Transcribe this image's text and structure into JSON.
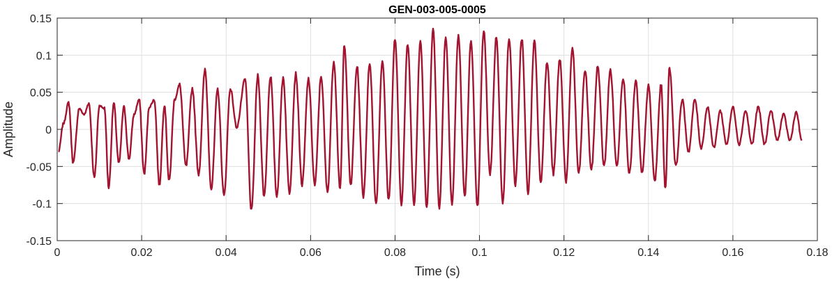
{
  "chart_data": {
    "type": "line",
    "title": "GEN-003-005-0005",
    "xlabel": "Time (s)",
    "ylabel": "Amplitude",
    "xlim": [
      0,
      0.18
    ],
    "ylim": [
      -0.15,
      0.15
    ],
    "grid": true,
    "x_ticks": [
      0,
      0.02,
      0.04,
      0.06,
      0.08,
      0.1,
      0.12,
      0.14,
      0.16,
      0.18
    ],
    "x_tick_labels": [
      "0",
      "0.02",
      "0.04",
      "0.06",
      "0.08",
      "0.1",
      "0.12",
      "0.14",
      "0.16",
      "0.18"
    ],
    "y_ticks": [
      -0.15,
      -0.1,
      -0.05,
      0,
      0.05,
      0.1,
      0.15
    ],
    "y_tick_labels": [
      "-0.15",
      "-0.1",
      "-0.05",
      "0",
      "0.05",
      "0.1",
      "0.15"
    ],
    "series": [
      {
        "color": "#A2142F",
        "peaks": [
          [
            0.0003,
            -0.03
          ],
          [
            0.0015,
            0.008
          ],
          [
            0.0027,
            0.036
          ],
          [
            0.0038,
            -0.045
          ],
          [
            0.0052,
            0.028
          ],
          [
            0.0064,
            0.02
          ],
          [
            0.0075,
            0.035
          ],
          [
            0.0088,
            -0.065
          ],
          [
            0.01,
            0.032
          ],
          [
            0.0112,
            0.028
          ],
          [
            0.0122,
            -0.078
          ],
          [
            0.0134,
            0.035
          ],
          [
            0.0146,
            -0.046
          ],
          [
            0.0158,
            0.03
          ],
          [
            0.017,
            -0.04
          ],
          [
            0.0182,
            0.02
          ],
          [
            0.0194,
            0.04
          ],
          [
            0.0206,
            -0.06
          ],
          [
            0.0218,
            0.03
          ],
          [
            0.023,
            0.04
          ],
          [
            0.0242,
            -0.075
          ],
          [
            0.0254,
            0.033
          ],
          [
            0.0265,
            -0.07
          ],
          [
            0.0278,
            0.04
          ],
          [
            0.029,
            0.06
          ],
          [
            0.0305,
            -0.05
          ],
          [
            0.032,
            0.055
          ],
          [
            0.0335,
            -0.06
          ],
          [
            0.035,
            0.08
          ],
          [
            0.0365,
            -0.08
          ],
          [
            0.038,
            0.054
          ],
          [
            0.0395,
            -0.09
          ],
          [
            0.041,
            0.055
          ],
          [
            0.0425,
            0.003
          ],
          [
            0.0445,
            0.067
          ],
          [
            0.046,
            -0.11
          ],
          [
            0.0475,
            0.072
          ],
          [
            0.049,
            -0.09
          ],
          [
            0.0505,
            0.072
          ],
          [
            0.052,
            -0.09
          ],
          [
            0.0535,
            0.07
          ],
          [
            0.055,
            -0.085
          ],
          [
            0.0565,
            0.075
          ],
          [
            0.058,
            -0.075
          ],
          [
            0.0595,
            0.068
          ],
          [
            0.061,
            -0.075
          ],
          [
            0.0625,
            0.072
          ],
          [
            0.064,
            -0.085
          ],
          [
            0.0655,
            0.092
          ],
          [
            0.067,
            -0.08
          ],
          [
            0.068,
            0.115
          ],
          [
            0.0695,
            -0.075
          ],
          [
            0.071,
            0.085
          ],
          [
            0.0725,
            -0.09
          ],
          [
            0.074,
            0.09
          ],
          [
            0.0755,
            -0.1
          ],
          [
            0.077,
            0.093
          ],
          [
            0.0785,
            -0.095
          ],
          [
            0.08,
            0.122
          ],
          [
            0.0815,
            -0.1
          ],
          [
            0.083,
            0.115
          ],
          [
            0.0845,
            -0.1
          ],
          [
            0.086,
            0.12
          ],
          [
            0.0875,
            -0.105
          ],
          [
            0.089,
            0.135
          ],
          [
            0.0905,
            -0.105
          ],
          [
            0.092,
            0.125
          ],
          [
            0.0935,
            -0.1
          ],
          [
            0.095,
            0.127
          ],
          [
            0.0965,
            -0.09
          ],
          [
            0.098,
            0.12
          ],
          [
            0.0995,
            -0.105
          ],
          [
            0.101,
            0.133
          ],
          [
            0.1025,
            -0.06
          ],
          [
            0.104,
            0.125
          ],
          [
            0.1055,
            -0.1
          ],
          [
            0.107,
            0.123
          ],
          [
            0.1085,
            -0.075
          ],
          [
            0.11,
            0.123
          ],
          [
            0.1115,
            -0.085
          ],
          [
            0.113,
            0.12
          ],
          [
            0.1145,
            -0.07
          ],
          [
            0.116,
            0.09
          ],
          [
            0.1175,
            -0.06
          ],
          [
            0.119,
            0.095
          ],
          [
            0.1205,
            -0.07
          ],
          [
            0.122,
            0.11
          ],
          [
            0.1235,
            -0.06
          ],
          [
            0.125,
            0.08
          ],
          [
            0.1265,
            -0.055
          ],
          [
            0.128,
            0.085
          ],
          [
            0.1295,
            -0.05
          ],
          [
            0.131,
            0.08
          ],
          [
            0.1325,
            -0.05
          ],
          [
            0.134,
            0.07
          ],
          [
            0.1355,
            -0.06
          ],
          [
            0.137,
            0.065
          ],
          [
            0.1385,
            -0.06
          ],
          [
            0.14,
            0.058
          ],
          [
            0.1415,
            -0.07
          ],
          [
            0.143,
            0.06
          ],
          [
            0.144,
            -0.08
          ],
          [
            0.145,
            0.083
          ],
          [
            0.1465,
            -0.05
          ],
          [
            0.148,
            0.04
          ],
          [
            0.1495,
            -0.03
          ],
          [
            0.151,
            0.04
          ],
          [
            0.1525,
            -0.025
          ],
          [
            0.154,
            0.03
          ],
          [
            0.1555,
            -0.025
          ],
          [
            0.157,
            0.025
          ],
          [
            0.1585,
            -0.02
          ],
          [
            0.16,
            0.03
          ],
          [
            0.1615,
            -0.02
          ],
          [
            0.163,
            0.025
          ],
          [
            0.1645,
            -0.02
          ],
          [
            0.166,
            0.03
          ],
          [
            0.1675,
            -0.02
          ],
          [
            0.169,
            0.025
          ],
          [
            0.1705,
            -0.015
          ],
          [
            0.172,
            0.02
          ],
          [
            0.1735,
            -0.015
          ],
          [
            0.175,
            0.023
          ],
          [
            0.1763,
            -0.015
          ]
        ]
      }
    ]
  }
}
